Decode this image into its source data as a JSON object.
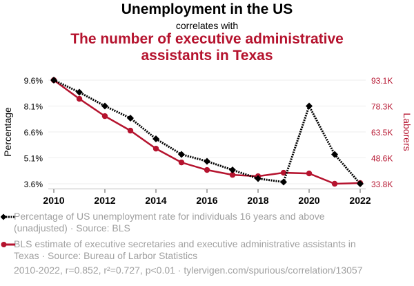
{
  "header": {
    "title": "Unemployment in the US",
    "subtitle": "correlates with",
    "title2_line1": "The number of executive administrative",
    "title2_line2": "assistants in Texas"
  },
  "colors": {
    "series1": "#000000",
    "series2": "#b5132e",
    "grid": "#eeeeee",
    "legend_text": "#a0a0a0"
  },
  "chart_data": {
    "type": "line",
    "title": "Unemployment in the US correlates with The number of executive administrative assistants in Texas",
    "x": [
      2010,
      2011,
      2012,
      2013,
      2014,
      2015,
      2016,
      2017,
      2018,
      2019,
      2020,
      2021,
      2022
    ],
    "xticks": [
      "2010",
      "2012",
      "2014",
      "2016",
      "2018",
      "2020",
      "2022"
    ],
    "xlim": [
      2010,
      2022
    ],
    "ylabel_left": "Percentage",
    "ylabel_right": "Laborers",
    "yticks_left": [
      "9.6%",
      "8.1%",
      "6.6%",
      "5.1%",
      "3.6%"
    ],
    "ylim_left": [
      3.6,
      9.6
    ],
    "yticks_right": [
      "93.1K",
      "78.3K",
      "63.5K",
      "48.6K",
      "33.8K"
    ],
    "ylim_right": [
      33.8,
      93.1
    ],
    "grid": true,
    "series": [
      {
        "name": "Percentage of US unemployment rate for individuals 16 years and above (unadjusted) · Source: BLS",
        "axis": "left",
        "style": "dotted",
        "marker": "diamond",
        "values": [
          9.6,
          8.9,
          8.1,
          7.4,
          6.2,
          5.3,
          4.9,
          4.4,
          3.9,
          3.7,
          8.1,
          5.3,
          3.6
        ]
      },
      {
        "name": "BLS estimate of executive secretaries and executive administrative assistants in Texas · Source: Bureau of Larbor Statistics",
        "axis": "right",
        "style": "solid",
        "marker": "circle",
        "values": [
          93.1,
          82.4,
          72.5,
          64.2,
          53.9,
          46.0,
          41.7,
          38.9,
          38.1,
          40.1,
          39.7,
          33.8,
          34.2
        ]
      }
    ]
  },
  "legend": {
    "item1_line1": "Percentage of US unemployment rate for individuals 16 years and above",
    "item1_line2": "(unadjusted) · Source: BLS",
    "item2_line1": "BLS estimate of executive secretaries and executive administrative assistants in",
    "item2_line2": "Texas · Source: Bureau of Larbor Statistics"
  },
  "footer": "2010-2022, r=0.852, r²=0.727, p<0.01 · tylervigen.com/spurious/correlation/13057"
}
